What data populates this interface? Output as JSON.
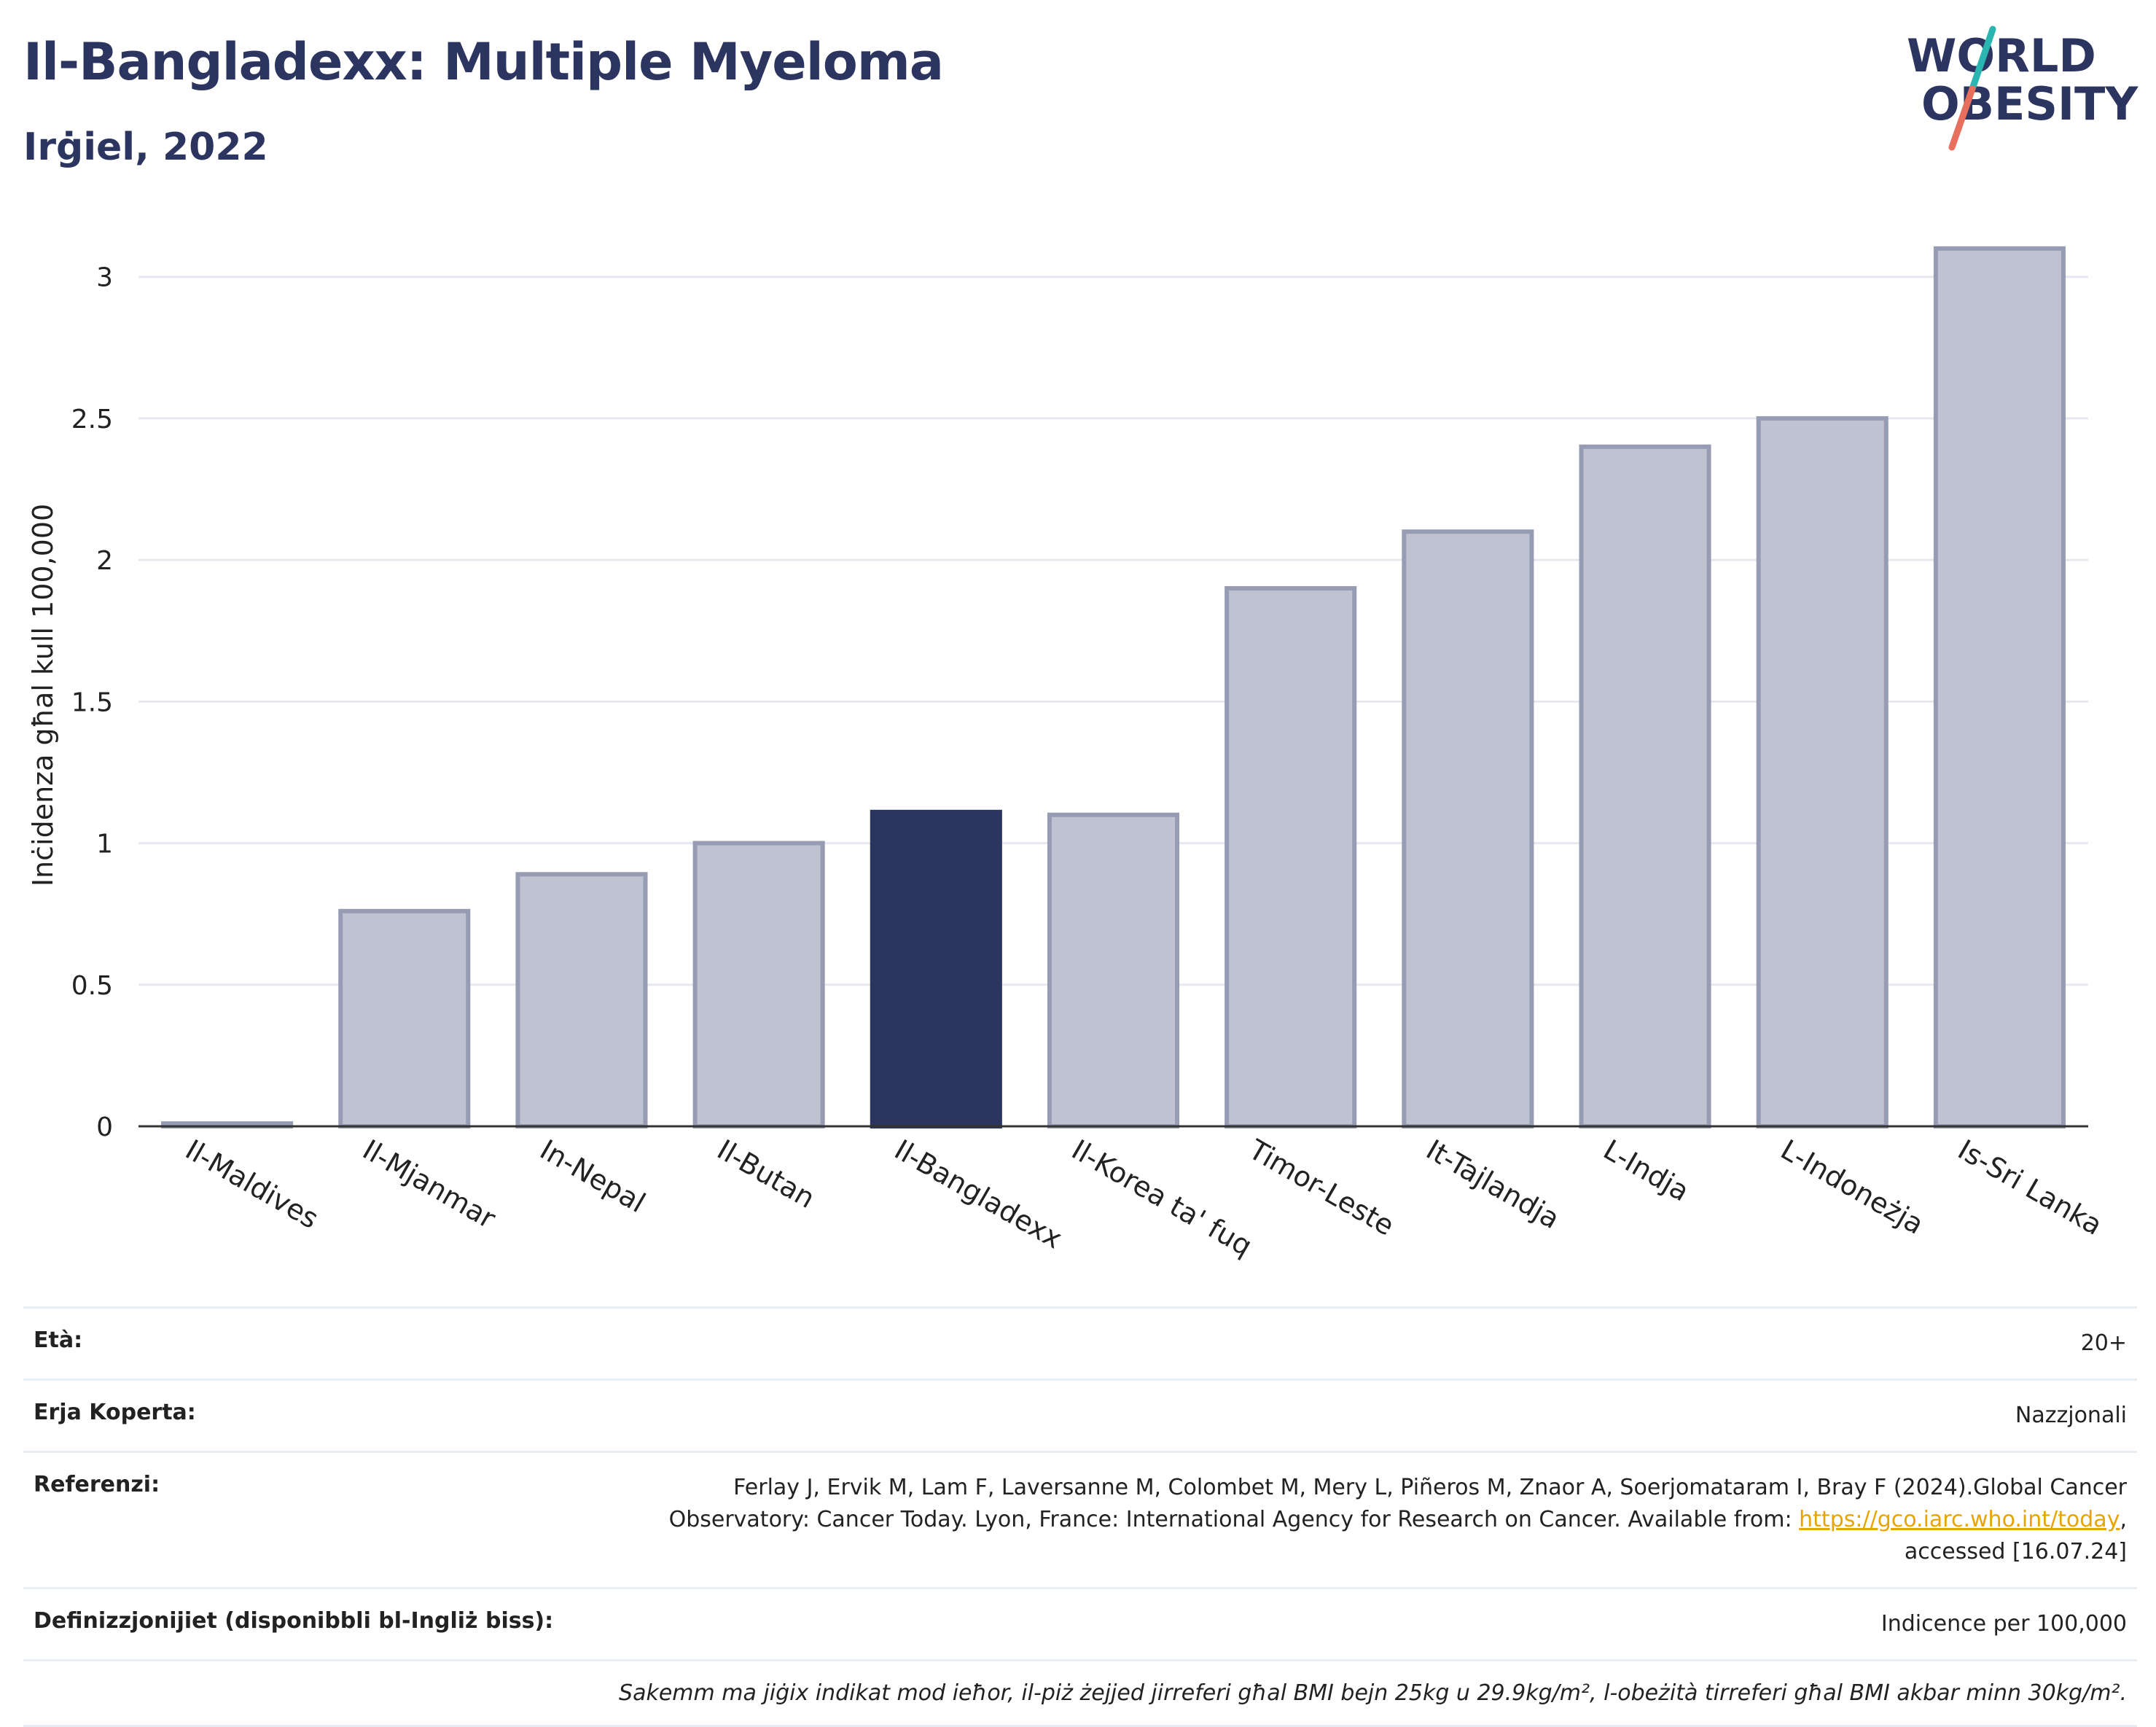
{
  "header": {
    "title": "Il-Bangladexx: Multiple Myeloma",
    "subtitle": "Irġiel, 2022"
  },
  "logo": {
    "line1": "WORLD",
    "line2": "OBESITY"
  },
  "chart_data": {
    "type": "bar",
    "ylabel": "Inċidenza għal kull 100,000",
    "ylim": [
      0,
      3.2
    ],
    "yticks": [
      0,
      0.5,
      1,
      1.5,
      2,
      2.5,
      3
    ],
    "yticklabels": [
      "0",
      "0.5",
      "1",
      "1.5",
      "2",
      "2.5",
      "3"
    ],
    "categories": [
      "Il-Maldives",
      "Il-Mjanmar",
      "In-Nepal",
      "Il-Butan",
      "Il-Bangladexx",
      "Il-Korea ta' fuq",
      "Timor-Leste",
      "It-Tajlandja",
      "L-Indja",
      "L-Indoneżja",
      "Is-Sri Lanka"
    ],
    "values": [
      0.01,
      0.76,
      0.89,
      1.0,
      1.11,
      1.1,
      1.9,
      2.1,
      2.4,
      2.5,
      3.1
    ],
    "highlight": "Il-Bangladexx",
    "colors": {
      "bar": "#bfc3d1",
      "bar_border": "#969cb3",
      "highlight": "#2c3560",
      "grid": "#e6e8ef",
      "axis": "#333333"
    }
  },
  "meta": {
    "age_label": "Età:",
    "age_value": "20+",
    "area_label": "Erja Koperta:",
    "area_value": "Nazzjonali",
    "ref_label": "Referenzi:",
    "ref_text_1": "Ferlay J, Ervik M, Lam F, Laversanne M, Colombet M, Mery L, Piñeros M, Znaor A, Soerjomataram I, Bray F (2024).Global Cancer Observatory: Cancer Today. Lyon, France: International Agency for Research on Cancer. Available from: ",
    "ref_link": "https://gco.iarc.who.int/today",
    "ref_text_2": ", accessed [16.07.24]",
    "def_label": "Definizzjonijiet (disponibbli bl-Ingliż biss):",
    "def_value": "Indicence per 100,000",
    "note": "Sakemm ma jiġix indikat mod ieħor, il-piż żejjed jirreferi għal BMI bejn 25kg u 29.9kg/m², l-obeżità tirreferi għal BMI akbar minn 30kg/m²."
  }
}
